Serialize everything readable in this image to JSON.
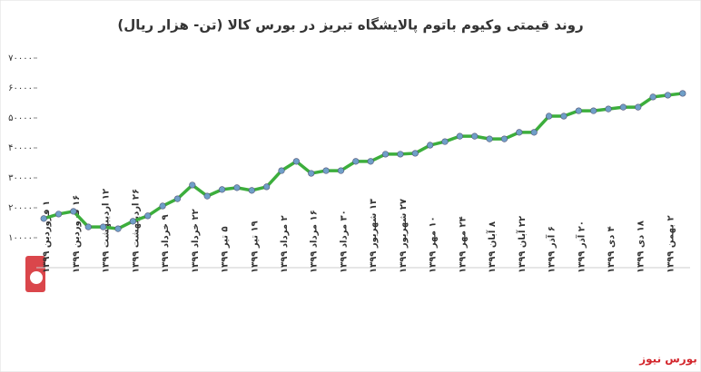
{
  "chart_data": {
    "type": "line",
    "title": "روند قیمتی وکیوم باتوم پالایشگاه تبریز در بورس کالا (تن- هزار ریال)",
    "source": "بورس نیوز",
    "categories": [
      "۱ فروردین ۱۳۹۹",
      null,
      "۱۶ فروردین ۱۳۹۹",
      null,
      "۱۲ اردیبهشت ۱۳۹۹",
      null,
      "۲۶ اردیبهشت ۱۳۹۹",
      null,
      "۹ خرداد ۱۳۹۹",
      null,
      "۲۲ خرداد ۱۳۹۹",
      null,
      "۵ تیر ۱۳۹۹",
      null,
      "۱۹ تیر ۱۳۹۹",
      null,
      "۲ مرداد ۱۳۹۹",
      null,
      "۱۶ مرداد ۱۳۹۹",
      null,
      "۳۰ مرداد ۱۳۹۹",
      null,
      "۱۳ شهریور ۱۳۹۹",
      null,
      "۲۷ شهریور ۱۳۹۹",
      null,
      "۱۰ مهر ۱۳۹۹",
      null,
      "۲۴ مهر ۱۳۹۹",
      null,
      "۸ آبان ۱۳۹۹",
      null,
      "۲۲ آبان ۱۳۹۹",
      null,
      "۶ آذر ۱۳۹۹",
      null,
      "۲۰ آذر ۱۳۹۹",
      null,
      "۴ دی ۱۳۹۹",
      null,
      "۱۸ دی ۱۳۹۹",
      null,
      "۲ بهمن ۱۳۹۹",
      null
    ],
    "series": [
      {
        "name": "قیمت",
        "color": "#3cae3c",
        "marker_color": "#6f9fc8",
        "values": [
          16400,
          17900,
          18800,
          13600,
          13600,
          13000,
          15500,
          17300,
          20600,
          23000,
          27600,
          23900,
          26100,
          26700,
          25800,
          27000,
          32400,
          35500,
          31500,
          32400,
          32400,
          35500,
          35500,
          37900,
          37900,
          38200,
          40900,
          42100,
          43900,
          43900,
          43000,
          43000,
          45200,
          45200,
          50600,
          50600,
          52400,
          52400,
          53000,
          53600,
          53600,
          57000,
          57600,
          58200
        ]
      }
    ],
    "ylim": [
      0,
      70000
    ],
    "yticks": [
      {
        "value": 10000,
        "label": "۱۰۰۰۰"
      },
      {
        "value": 20000,
        "label": "۲۰۰۰۰"
      },
      {
        "value": 30000,
        "label": "۳۰۰۰۰"
      },
      {
        "value": 40000,
        "label": "۴۰۰۰۰"
      },
      {
        "value": 50000,
        "label": "۵۰۰۰۰"
      },
      {
        "value": 60000,
        "label": "۶۰۰۰۰"
      },
      {
        "value": 70000,
        "label": "۷۰۰۰۰"
      }
    ],
    "grid": false
  }
}
